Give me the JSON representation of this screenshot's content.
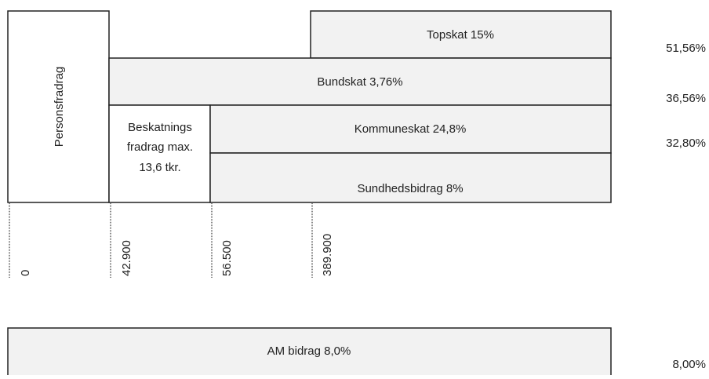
{
  "boxes": {
    "personsfradrag": "Personsfradrag",
    "topskat": "Topskat 15%",
    "bundskat": "Bundskat 3,76%",
    "beskatningsfradrag": [
      "Beskatnings",
      "fradrag max.",
      "13,6 tkr."
    ],
    "kommuneskat": "Kommuneskat 24,8%",
    "sundhedsbidrag": "Sundhedsbidrag 8%",
    "am_bidrag": "AM bidrag 8,0%"
  },
  "rates": [
    "51,56%",
    "36,56%",
    "32,80%",
    "8,00%"
  ],
  "thresholds": [
    "0",
    "42.900",
    "56.500",
    "389.900"
  ]
}
